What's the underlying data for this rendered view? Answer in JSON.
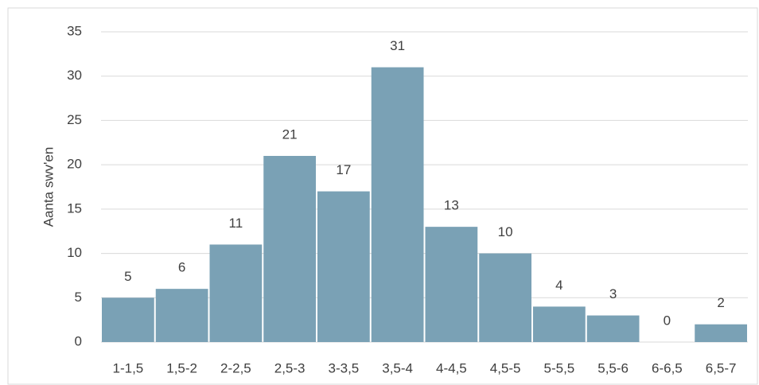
{
  "chart_data": {
    "type": "bar",
    "y_label": "Aanta swv'en",
    "categories": [
      "1-1,5",
      "1,5-2",
      "2-2,5",
      "2,5-3",
      "3-3,5",
      "3,5-4",
      "4-4,5",
      "4,5-5",
      "5-5,5",
      "5,5-6",
      "6-6,5",
      "6,5-7"
    ],
    "values": [
      5,
      6,
      11,
      21,
      17,
      31,
      13,
      10,
      4,
      3,
      0,
      2
    ],
    "color": "#7aa1b5",
    "ylim": [
      0,
      35
    ],
    "yticks": [
      0,
      5,
      10,
      15,
      20,
      25,
      30,
      35
    ],
    "grid": true
  }
}
